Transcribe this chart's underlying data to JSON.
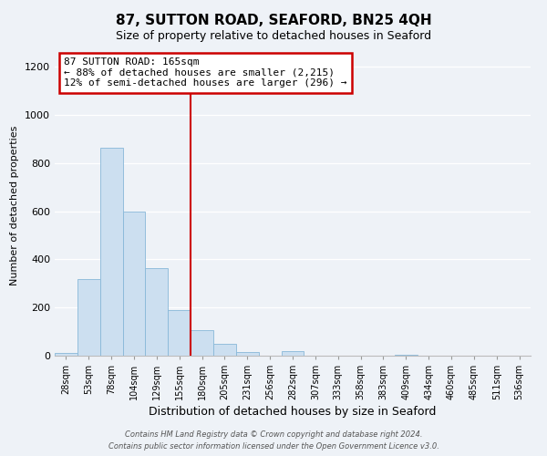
{
  "title": "87, SUTTON ROAD, SEAFORD, BN25 4QH",
  "subtitle": "Size of property relative to detached houses in Seaford",
  "xlabel": "Distribution of detached houses by size in Seaford",
  "ylabel": "Number of detached properties",
  "bar_color": "#ccdff0",
  "bar_edge_color": "#88b8d8",
  "categories": [
    "28sqm",
    "53sqm",
    "78sqm",
    "104sqm",
    "129sqm",
    "155sqm",
    "180sqm",
    "205sqm",
    "231sqm",
    "256sqm",
    "282sqm",
    "307sqm",
    "333sqm",
    "358sqm",
    "383sqm",
    "409sqm",
    "434sqm",
    "460sqm",
    "485sqm",
    "511sqm",
    "536sqm"
  ],
  "values": [
    10,
    320,
    865,
    600,
    365,
    190,
    105,
    48,
    15,
    0,
    18,
    0,
    0,
    0,
    0,
    5,
    0,
    0,
    0,
    0,
    0
  ],
  "ylim": [
    0,
    1250
  ],
  "yticks": [
    0,
    200,
    400,
    600,
    800,
    1000,
    1200
  ],
  "marker_bin_index": 6,
  "marker_label": "87 SUTTON ROAD: 165sqm",
  "annotation_line1": "← 88% of detached houses are smaller (2,215)",
  "annotation_line2": "12% of semi-detached houses are larger (296) →",
  "marker_color": "#cc0000",
  "box_facecolor": "#ffffff",
  "box_edgecolor": "#cc0000",
  "footer1": "Contains HM Land Registry data © Crown copyright and database right 2024.",
  "footer2": "Contains public sector information licensed under the Open Government Licence v3.0.",
  "background_color": "#eef2f7",
  "grid_color": "#ffffff",
  "title_fontsize": 11,
  "subtitle_fontsize": 9,
  "xlabel_fontsize": 9,
  "ylabel_fontsize": 8,
  "tick_fontsize": 7,
  "annotation_fontsize": 8,
  "footer_fontsize": 6
}
